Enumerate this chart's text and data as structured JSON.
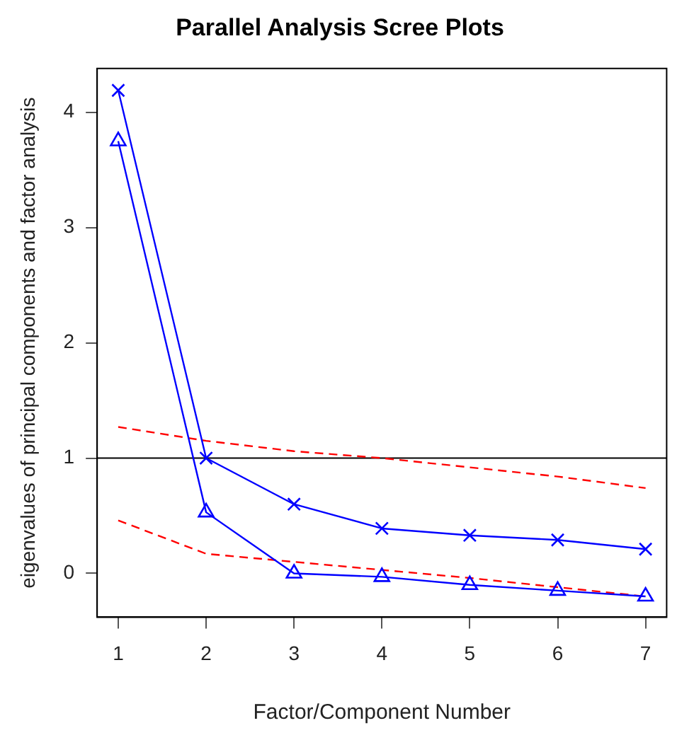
{
  "chart_data": {
    "type": "line",
    "title": "Parallel Analysis Scree Plots",
    "xlabel": "Factor/Component Number",
    "ylabel": "eigenvalues of principal components and factor analysis",
    "x": [
      1,
      2,
      3,
      4,
      5,
      6,
      7
    ],
    "series": [
      {
        "color": "#0000ff",
        "marker": "cross",
        "line_style": "solid",
        "values": [
          4.19,
          1.0,
          0.6,
          0.39,
          0.33,
          0.29,
          0.21
        ]
      },
      {
        "color": "#0000ff",
        "marker": "triangle",
        "line_style": "solid",
        "values": [
          3.75,
          0.53,
          0.0,
          -0.03,
          -0.1,
          -0.15,
          -0.2
        ]
      },
      {
        "color": "#ff0000",
        "marker": "none",
        "line_style": "dashed",
        "values": [
          1.27,
          1.15,
          1.06,
          1.0,
          0.92,
          0.84,
          0.74
        ]
      },
      {
        "color": "#ff0000",
        "marker": "none",
        "line_style": "dashed",
        "values": [
          0.46,
          0.17,
          0.1,
          0.03,
          -0.04,
          -0.12,
          -0.2
        ]
      }
    ],
    "ref_lines": [
      {
        "axis": "y",
        "value": 1,
        "color": "#000000"
      }
    ],
    "xlim": [
      0.76,
      7.24
    ],
    "xticks": [
      1,
      2,
      3,
      4,
      5,
      6,
      7
    ],
    "ylim": [
      -0.38,
      4.38
    ],
    "yticks": [
      0,
      1,
      2,
      3,
      4
    ],
    "grid": false,
    "legend": false
  }
}
